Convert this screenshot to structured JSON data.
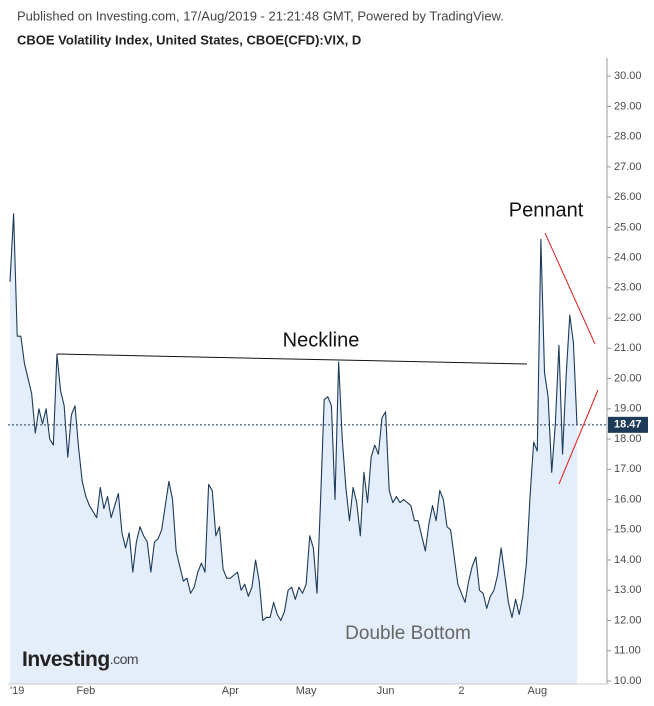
{
  "chart_data": {
    "type": "area",
    "source": "Published on Investing.com, 17/Aug/2019 - 21:21:48 GMT, Powered by TradingView.",
    "title": "CBOE Volatility Index, United States, CBOE(CFD):VIX, D",
    "logo": {
      "name": "Investing",
      "suffix": ".com"
    },
    "annotations": {
      "neckline": "Neckline",
      "pennant": "Pennant",
      "pattern": "Double Bottom"
    },
    "categories": [
      "'19",
      null,
      null,
      null,
      null,
      null,
      null,
      null,
      null,
      null,
      null,
      null,
      null,
      null,
      null,
      null,
      null,
      null,
      null,
      null,
      null,
      "Feb",
      null,
      null,
      null,
      null,
      null,
      null,
      null,
      null,
      null,
      null,
      null,
      null,
      null,
      null,
      null,
      null,
      null,
      null,
      null,
      null,
      null,
      null,
      null,
      null,
      null,
      null,
      null,
      null,
      null,
      null,
      null,
      null,
      null,
      null,
      null,
      null,
      null,
      null,
      null,
      "Apr",
      null,
      null,
      null,
      null,
      null,
      null,
      null,
      null,
      null,
      null,
      null,
      null,
      null,
      null,
      null,
      null,
      null,
      null,
      null,
      null,
      "May",
      null,
      null,
      null,
      null,
      null,
      null,
      null,
      null,
      null,
      null,
      null,
      null,
      null,
      null,
      null,
      null,
      null,
      null,
      null,
      null,
      null,
      "Jun",
      null,
      null,
      null,
      null,
      null,
      null,
      null,
      null,
      null,
      null,
      null,
      null,
      null,
      null,
      null,
      null,
      null,
      null,
      null,
      null,
      "2",
      null,
      null,
      null,
      null,
      null,
      null,
      null,
      null,
      null,
      null,
      null,
      null,
      null,
      null,
      null,
      null,
      null,
      null,
      null,
      null,
      "Aug",
      null,
      null,
      null,
      null,
      null,
      null,
      null,
      null,
      null,
      null,
      null
    ],
    "series": [
      {
        "name": "VIX",
        "color": "#1d3a58",
        "area_color": "#e4eefa",
        "values": [
          23.2,
          25.45,
          21.4,
          21.4,
          20.5,
          20.0,
          19.5,
          18.2,
          19.0,
          18.5,
          19.0,
          18.0,
          17.8,
          20.8,
          19.6,
          19.1,
          17.4,
          18.8,
          19.1,
          17.7,
          16.6,
          16.1,
          15.8,
          15.6,
          15.4,
          16.4,
          15.7,
          16.1,
          15.4,
          15.8,
          16.2,
          14.9,
          14.4,
          14.9,
          13.6,
          14.6,
          15.1,
          14.8,
          14.6,
          13.6,
          14.6,
          14.7,
          15.0,
          15.8,
          16.6,
          16.0,
          14.3,
          13.8,
          13.3,
          13.4,
          12.9,
          13.1,
          13.6,
          13.9,
          13.6,
          16.5,
          16.3,
          14.8,
          15.1,
          13.7,
          13.4,
          13.4,
          13.5,
          13.6,
          13.0,
          13.2,
          12.8,
          13.1,
          14.0,
          13.3,
          12.0,
          12.1,
          12.1,
          12.6,
          12.2,
          12.0,
          12.3,
          13.0,
          13.1,
          12.7,
          13.1,
          12.9,
          13.2,
          14.8,
          14.4,
          12.9,
          16.0,
          19.3,
          19.4,
          19.1,
          16.0,
          20.55,
          18.0,
          16.4,
          15.3,
          16.4,
          15.9,
          14.8,
          16.9,
          15.9,
          17.4,
          17.8,
          17.5,
          18.7,
          18.9,
          16.3,
          15.9,
          16.1,
          15.9,
          16.0,
          15.9,
          15.8,
          15.3,
          15.3,
          14.8,
          14.3,
          15.2,
          15.8,
          15.3,
          16.3,
          16.0,
          15.1,
          15.0,
          14.1,
          13.2,
          12.9,
          12.6,
          13.3,
          13.8,
          14.1,
          13.0,
          12.9,
          12.4,
          12.8,
          13.0,
          13.5,
          14.4,
          13.5,
          12.6,
          12.1,
          12.7,
          12.2,
          12.8,
          13.9,
          16.1,
          17.9,
          17.6,
          24.6,
          20.2,
          19.4,
          16.9,
          18.5,
          21.1,
          17.5,
          20.1,
          22.1,
          21.2,
          18.47
        ]
      }
    ],
    "ylim": [
      9.9,
      30.6
    ],
    "yticks": [
      {
        "value": 10,
        "label": "10.00"
      },
      {
        "value": 11,
        "label": "11.00"
      },
      {
        "value": 12,
        "label": "12.00"
      },
      {
        "value": 13,
        "label": "13.00"
      },
      {
        "value": 14,
        "label": "14.00"
      },
      {
        "value": 15,
        "label": "15.00"
      },
      {
        "value": 16,
        "label": "16.00"
      },
      {
        "value": 17,
        "label": "17.00"
      },
      {
        "value": 18,
        "label": "18.00"
      },
      {
        "value": 19,
        "label": "19.00"
      },
      {
        "value": 20,
        "label": "20.00"
      },
      {
        "value": 21,
        "label": "21.00"
      },
      {
        "value": 22,
        "label": "22.00"
      },
      {
        "value": 23,
        "label": "23.00"
      },
      {
        "value": 24,
        "label": "24.00"
      },
      {
        "value": 25,
        "label": "25.00"
      },
      {
        "value": 26,
        "label": "26.00"
      },
      {
        "value": 27,
        "label": "27.00"
      },
      {
        "value": 28,
        "label": "28.00"
      },
      {
        "value": 29,
        "label": "29.00"
      },
      {
        "value": 30,
        "label": "30.00"
      }
    ],
    "grid": false,
    "last_value_marker": true
  }
}
